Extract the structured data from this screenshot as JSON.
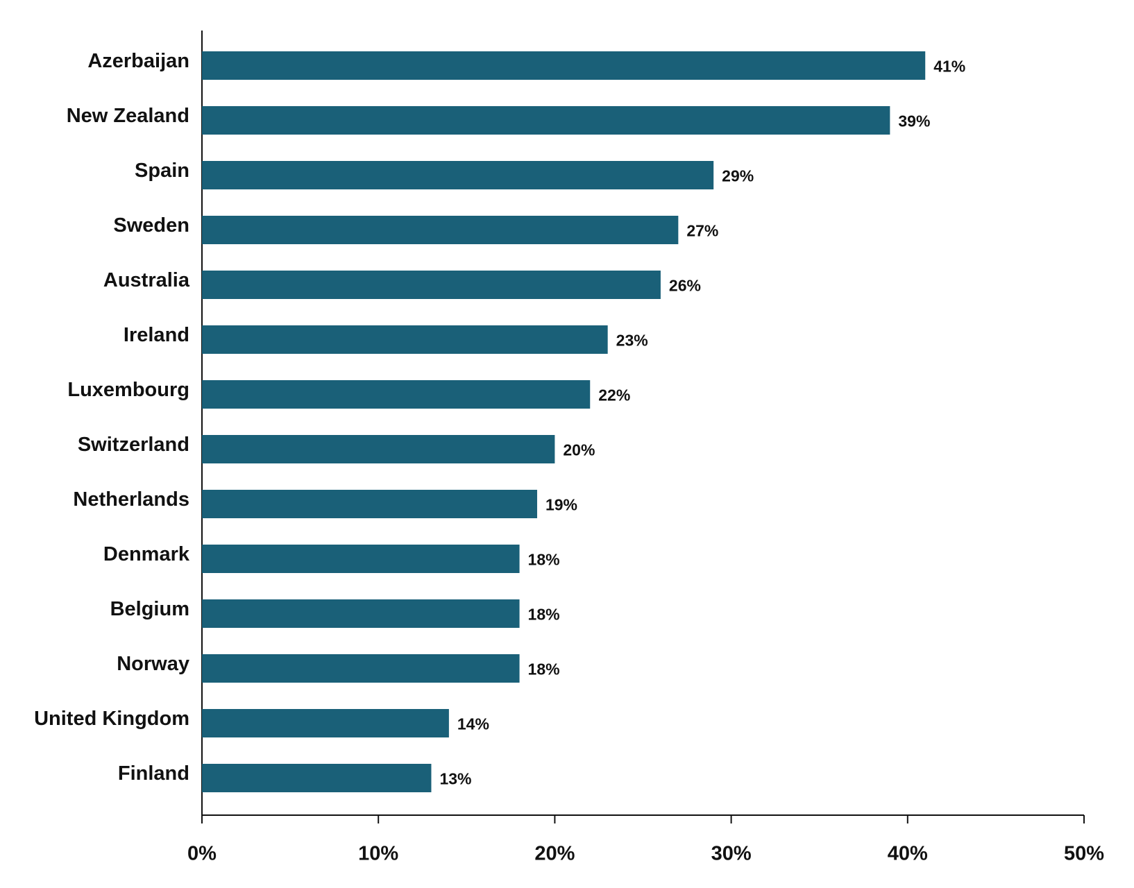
{
  "chart_data": {
    "type": "hbar",
    "categories": [
      "Azerbaijan",
      "New Zealand",
      "Spain",
      "Sweden",
      "Australia",
      "Ireland",
      "Luxembourg",
      "Switzerland",
      "Netherlands",
      "Denmark",
      "Belgium",
      "Norway",
      "United Kingdom",
      "Finland"
    ],
    "values": [
      41,
      39,
      29,
      27,
      26,
      23,
      22,
      20,
      19,
      18,
      18,
      18,
      14,
      13
    ],
    "value_labels": [
      "41%",
      "39%",
      "29%",
      "27%",
      "26%",
      "23%",
      "22%",
      "20%",
      "19%",
      "18%",
      "18%",
      "18%",
      "14%",
      "13%"
    ],
    "color": "#1a6078",
    "xlim": [
      0,
      50
    ],
    "xticks": [
      {
        "value": 0,
        "label": "0%"
      },
      {
        "value": 10,
        "label": "10%"
      },
      {
        "value": 20,
        "label": "20%"
      },
      {
        "value": 30,
        "label": "30%"
      },
      {
        "value": 40,
        "label": "40%"
      },
      {
        "value": 50,
        "label": "50%"
      }
    ]
  }
}
